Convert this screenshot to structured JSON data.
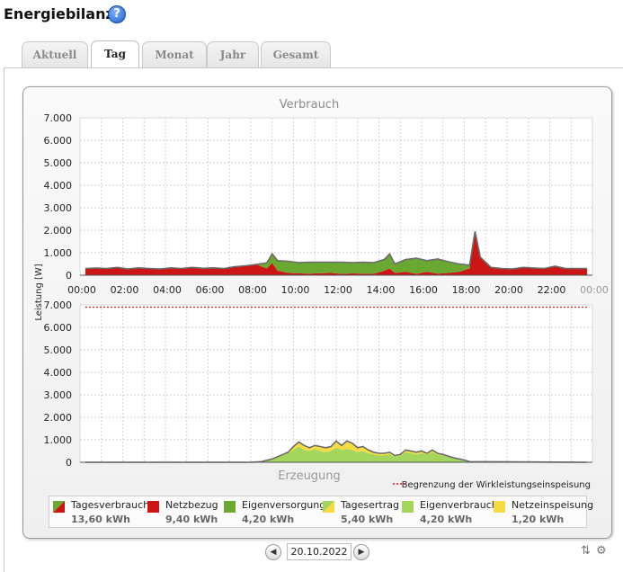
{
  "page": {
    "title": "Energiebilanz",
    "help_icon": "help-icon"
  },
  "tabs": [
    {
      "label": "Aktuell",
      "active": false
    },
    {
      "label": "Tag",
      "active": true
    },
    {
      "label": "Monat",
      "active": false
    },
    {
      "label": "Jahr",
      "active": false
    },
    {
      "label": "Gesamt",
      "active": false
    }
  ],
  "chart_data": [
    {
      "type": "area",
      "title": "Verbrauch",
      "ylabel": "Leistung [W]",
      "ylim": [
        0,
        7000
      ],
      "yticks": [
        "7.000",
        "6.000",
        "5.000",
        "4.000",
        "3.000",
        "2.000",
        "1.000",
        "0"
      ],
      "xticks": [
        "00:00",
        "02:00",
        "04:00",
        "06:00",
        "08:00",
        "10:00",
        "12:00",
        "14:00",
        "16:00",
        "18:00",
        "20:00",
        "22:00",
        "00:00"
      ],
      "grid": true,
      "x": [
        "00:15",
        "00:45",
        "01:15",
        "01:45",
        "02:15",
        "02:45",
        "03:15",
        "03:45",
        "04:15",
        "04:45",
        "05:15",
        "05:45",
        "06:15",
        "06:45",
        "07:15",
        "07:45",
        "08:15",
        "08:45",
        "09:00",
        "09:15",
        "09:45",
        "10:15",
        "10:45",
        "11:15",
        "11:45",
        "12:15",
        "12:45",
        "13:15",
        "13:45",
        "14:15",
        "14:30",
        "14:45",
        "15:15",
        "15:45",
        "16:15",
        "16:45",
        "17:15",
        "17:45",
        "18:15",
        "18:30",
        "18:45",
        "19:15",
        "19:45",
        "20:15",
        "20:45",
        "21:15",
        "21:45",
        "22:15",
        "22:45",
        "23:15",
        "23:45"
      ],
      "series": [
        {
          "name": "Netzbezug",
          "color": "#cc1515",
          "values": [
            300,
            320,
            300,
            350,
            280,
            330,
            300,
            280,
            330,
            300,
            350,
            310,
            330,
            300,
            380,
            420,
            480,
            300,
            550,
            200,
            100,
            80,
            70,
            90,
            100,
            60,
            80,
            70,
            60,
            200,
            300,
            100,
            150,
            60,
            150,
            70,
            100,
            150,
            300,
            1950,
            800,
            350,
            300,
            280,
            350,
            320,
            300,
            400,
            300,
            300,
            300
          ]
        },
        {
          "name": "Eigenversorgung",
          "color": "#6aa832",
          "values": [
            0,
            0,
            0,
            0,
            0,
            0,
            0,
            0,
            0,
            0,
            0,
            0,
            0,
            0,
            0,
            0,
            0,
            250,
            400,
            450,
            520,
            480,
            510,
            490,
            480,
            520,
            480,
            510,
            500,
            500,
            650,
            400,
            550,
            700,
            500,
            650,
            500,
            350,
            150,
            0,
            0,
            0,
            0,
            0,
            0,
            0,
            0,
            0,
            0,
            0,
            0
          ]
        }
      ]
    },
    {
      "type": "area",
      "title": "Erzeugung",
      "ylim": [
        0,
        7000
      ],
      "yticks": [
        "7.000",
        "6.000",
        "5.000",
        "4.000",
        "3.000",
        "2.000",
        "1.000",
        "0"
      ],
      "limit_value": 6900,
      "limit_label": "Begrenzung der Wirkleistungseinspeisung",
      "x": [
        "00:15",
        "08:00",
        "08:30",
        "09:00",
        "09:15",
        "09:30",
        "09:45",
        "10:00",
        "10:15",
        "10:30",
        "10:45",
        "11:00",
        "11:15",
        "11:30",
        "11:45",
        "12:00",
        "12:15",
        "12:30",
        "12:45",
        "13:00",
        "13:15",
        "13:30",
        "13:45",
        "14:00",
        "14:15",
        "14:30",
        "14:45",
        "15:00",
        "15:15",
        "15:30",
        "15:45",
        "16:00",
        "16:15",
        "16:30",
        "16:45",
        "17:00",
        "17:30",
        "18:00",
        "18:15",
        "23:45"
      ],
      "series": [
        {
          "name": "Eigenverbrauch",
          "color": "#a4d65e",
          "values": [
            0,
            0,
            30,
            150,
            250,
            350,
            400,
            550,
            700,
            550,
            500,
            600,
            500,
            450,
            500,
            650,
            550,
            600,
            550,
            450,
            500,
            400,
            350,
            300,
            300,
            350,
            250,
            300,
            450,
            400,
            350,
            400,
            350,
            450,
            350,
            300,
            200,
            100,
            30,
            0
          ]
        },
        {
          "name": "Netzeinspeisung",
          "color": "#f5dc44",
          "values": [
            0,
            0,
            0,
            0,
            0,
            0,
            50,
            150,
            200,
            200,
            150,
            150,
            200,
            200,
            200,
            300,
            200,
            350,
            300,
            200,
            200,
            150,
            100,
            100,
            100,
            100,
            50,
            50,
            100,
            100,
            100,
            100,
            50,
            100,
            50,
            50,
            0,
            0,
            0,
            0
          ]
        }
      ]
    }
  ],
  "legend": [
    {
      "label": "Tagesverbrauch",
      "value": "13,60 kWh",
      "icon": "split-red-green"
    },
    {
      "label": "Netzbezug",
      "value": "9,40 kWh",
      "icon": "red"
    },
    {
      "label": "Eigenversorgung",
      "value": "4,20 kWh",
      "icon": "green"
    },
    {
      "label": "Tagesertrag",
      "value": "5,40 kWh",
      "icon": "split-yellow-green"
    },
    {
      "label": "Eigenverbrauch",
      "value": "4,20 kWh",
      "icon": "lightgreen"
    },
    {
      "label": "Netzeinspeisung",
      "value": "1,20 kWh",
      "icon": "yellow"
    }
  ],
  "colors": {
    "netzbezug": "#cc1515",
    "eigen": "#6aa832",
    "eigenverbrauch": "#a4d65e",
    "einspeisung": "#f5dc44",
    "limit": "#cc1515"
  },
  "date": "20.10.2022",
  "nav": {
    "prev_icon": "triangle-left-icon",
    "next_icon": "triangle-right-icon"
  }
}
